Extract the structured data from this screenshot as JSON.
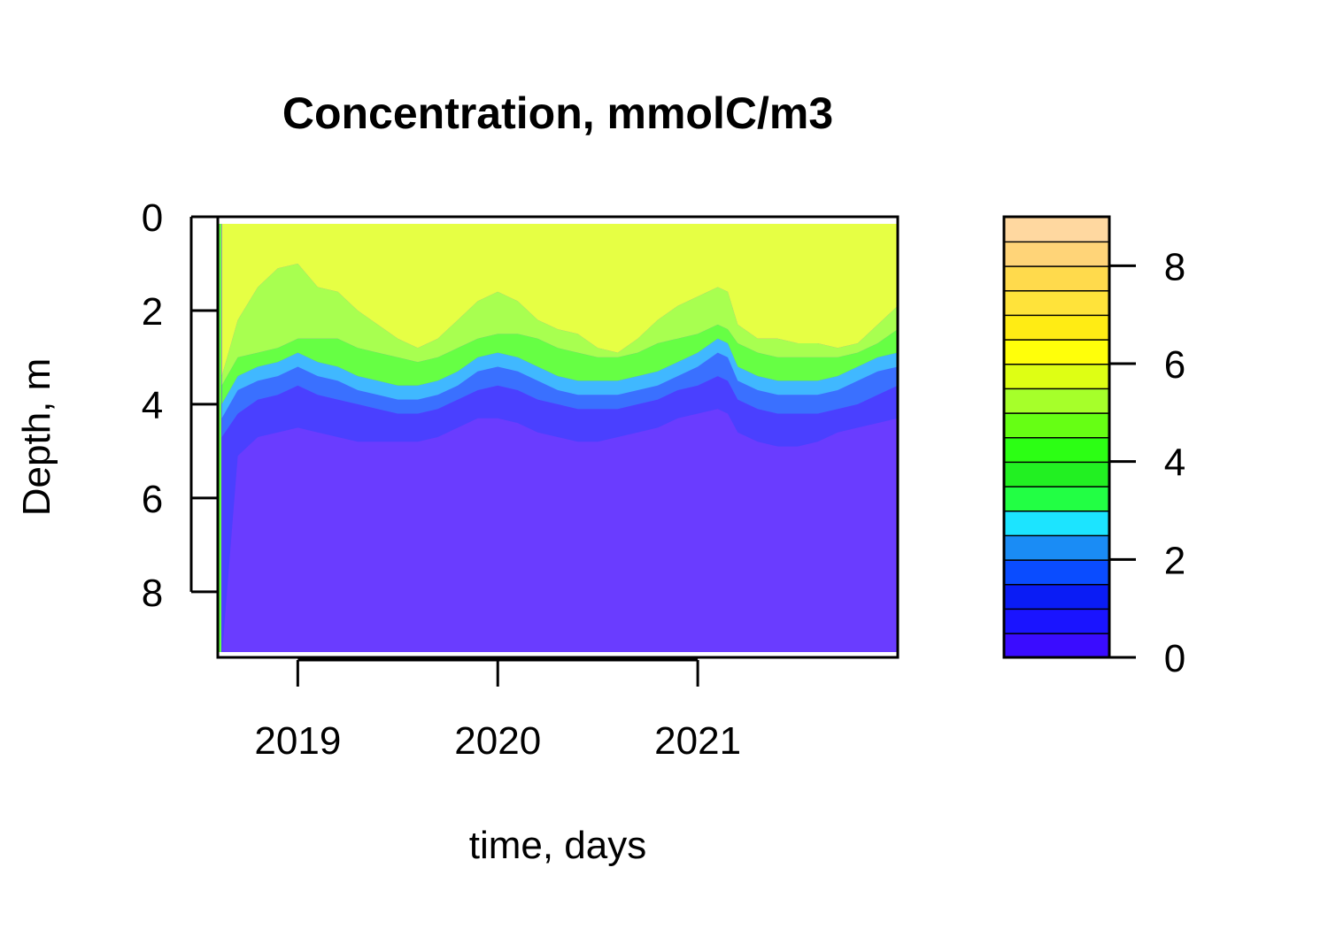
{
  "chart_data": {
    "type": "heatmap",
    "title": "Concentration, mmolC/m3",
    "xlabel": "time, days",
    "ylabel": "Depth, m",
    "x_ticks": [
      {
        "label": "2019",
        "value": 2019.0
      },
      {
        "label": "2020",
        "value": 2020.0
      },
      {
        "label": "2021",
        "value": 2021.0
      }
    ],
    "xlim": [
      2018.6,
      2022.0
    ],
    "y_ticks": [
      0,
      2,
      4,
      6,
      8
    ],
    "ylim": [
      0,
      9.4
    ],
    "y_reversed": true,
    "colorbar": {
      "ticks": [
        0,
        2,
        4,
        6,
        8
      ],
      "range": [
        0,
        9
      ],
      "levels": [
        {
          "lo": 0.0,
          "hi": 0.5,
          "color": "#3a0cff"
        },
        {
          "lo": 0.5,
          "hi": 1.0,
          "color": "#1a14ff"
        },
        {
          "lo": 1.0,
          "hi": 1.5,
          "color": "#0a1cf5"
        },
        {
          "lo": 1.5,
          "hi": 2.0,
          "color": "#0a4cff"
        },
        {
          "lo": 2.0,
          "hi": 2.5,
          "color": "#1a8cf5"
        },
        {
          "lo": 2.5,
          "hi": 3.0,
          "color": "#1ce4ff"
        },
        {
          "lo": 3.0,
          "hi": 3.5,
          "color": "#22ff44"
        },
        {
          "lo": 3.5,
          "hi": 4.0,
          "color": "#22f022"
        },
        {
          "lo": 4.0,
          "hi": 4.5,
          "color": "#2cff14"
        },
        {
          "lo": 4.5,
          "hi": 5.0,
          "color": "#66ff14"
        },
        {
          "lo": 5.0,
          "hi": 5.5,
          "color": "#a6ff2a"
        },
        {
          "lo": 5.5,
          "hi": 6.0,
          "color": "#deff14"
        },
        {
          "lo": 6.0,
          "hi": 6.5,
          "color": "#ffff0a"
        },
        {
          "lo": 6.5,
          "hi": 7.0,
          "color": "#ffec14"
        },
        {
          "lo": 7.0,
          "hi": 7.5,
          "color": "#ffe33a"
        },
        {
          "lo": 7.5,
          "hi": 8.0,
          "color": "#ffda4c"
        },
        {
          "lo": 8.0,
          "hi": 8.5,
          "color": "#ffd478"
        },
        {
          "lo": 8.5,
          "hi": 9.0,
          "color": "#ffd8a0"
        }
      ]
    },
    "field_layers": [
      {
        "name": "bottom",
        "color": "#6a3cff",
        "from": "layer_c",
        "to": "bottom"
      },
      {
        "name": "deep-blue",
        "color": "#4a40ff",
        "from": "layer_b",
        "to": "layer_c"
      },
      {
        "name": "blue",
        "color": "#3a70ff",
        "from": "layer_a2",
        "to": "layer_b"
      },
      {
        "name": "cyan",
        "color": "#40b8ff",
        "from": "layer_a1",
        "to": "layer_a2"
      },
      {
        "name": "green",
        "color": "#66ff44",
        "from": "layer_g",
        "to": "layer_a1"
      },
      {
        "name": "light-green",
        "color": "#a8ff50",
        "from": "layer_y",
        "to": "layer_g"
      },
      {
        "name": "yellow",
        "color": "#e6ff44",
        "from": "surface",
        "to": "layer_y"
      }
    ],
    "boundaries": {
      "x": [
        2018.62,
        2018.7,
        2018.8,
        2018.9,
        2019.0,
        2019.1,
        2019.2,
        2019.3,
        2019.4,
        2019.5,
        2019.6,
        2019.7,
        2019.8,
        2019.9,
        2020.0,
        2020.1,
        2020.2,
        2020.3,
        2020.4,
        2020.5,
        2020.6,
        2020.7,
        2020.8,
        2020.9,
        2021.0,
        2021.1,
        2021.15,
        2021.2,
        2021.3,
        2021.4,
        2021.5,
        2021.6,
        2021.7,
        2021.8,
        2021.9,
        2022.0
      ],
      "layer_y": [
        3.4,
        2.2,
        1.5,
        1.1,
        1.0,
        1.5,
        1.6,
        2.0,
        2.3,
        2.6,
        2.8,
        2.6,
        2.2,
        1.8,
        1.6,
        1.8,
        2.2,
        2.4,
        2.5,
        2.8,
        2.9,
        2.6,
        2.2,
        1.9,
        1.7,
        1.5,
        1.6,
        2.3,
        2.6,
        2.6,
        2.7,
        2.7,
        2.8,
        2.7,
        2.3,
        1.9
      ],
      "layer_g": [
        3.6,
        3.0,
        2.9,
        2.8,
        2.6,
        2.6,
        2.6,
        2.8,
        2.9,
        3.0,
        3.1,
        3.0,
        2.8,
        2.6,
        2.5,
        2.5,
        2.6,
        2.8,
        2.9,
        3.0,
        3.0,
        2.9,
        2.7,
        2.6,
        2.5,
        2.3,
        2.4,
        2.7,
        2.9,
        3.0,
        3.0,
        3.0,
        3.0,
        2.9,
        2.7,
        2.4
      ],
      "layer_a1": [
        4.0,
        3.4,
        3.2,
        3.1,
        2.9,
        3.1,
        3.2,
        3.4,
        3.5,
        3.6,
        3.6,
        3.5,
        3.3,
        3.0,
        2.9,
        3.0,
        3.2,
        3.4,
        3.5,
        3.5,
        3.5,
        3.4,
        3.3,
        3.1,
        2.9,
        2.6,
        2.7,
        3.2,
        3.4,
        3.5,
        3.5,
        3.5,
        3.4,
        3.2,
        3.0,
        2.9
      ],
      "layer_a2": [
        4.3,
        3.7,
        3.5,
        3.4,
        3.2,
        3.4,
        3.5,
        3.7,
        3.8,
        3.9,
        3.9,
        3.8,
        3.6,
        3.3,
        3.2,
        3.3,
        3.5,
        3.7,
        3.8,
        3.8,
        3.8,
        3.7,
        3.6,
        3.4,
        3.2,
        2.9,
        3.0,
        3.5,
        3.7,
        3.8,
        3.8,
        3.8,
        3.7,
        3.5,
        3.3,
        3.2
      ],
      "layer_b": [
        4.7,
        4.2,
        3.9,
        3.8,
        3.6,
        3.8,
        3.9,
        4.0,
        4.1,
        4.2,
        4.2,
        4.1,
        3.9,
        3.7,
        3.6,
        3.7,
        3.9,
        4.0,
        4.1,
        4.1,
        4.1,
        4.0,
        3.9,
        3.7,
        3.6,
        3.4,
        3.5,
        3.9,
        4.1,
        4.2,
        4.2,
        4.2,
        4.1,
        4.0,
        3.8,
        3.6
      ],
      "layer_c": [
        9.4,
        5.1,
        4.7,
        4.6,
        4.5,
        4.6,
        4.7,
        4.8,
        4.8,
        4.8,
        4.8,
        4.7,
        4.5,
        4.3,
        4.3,
        4.4,
        4.6,
        4.7,
        4.8,
        4.8,
        4.7,
        4.6,
        4.5,
        4.3,
        4.2,
        4.1,
        4.2,
        4.6,
        4.8,
        4.9,
        4.9,
        4.8,
        4.6,
        4.5,
        4.4,
        4.3
      ]
    }
  }
}
